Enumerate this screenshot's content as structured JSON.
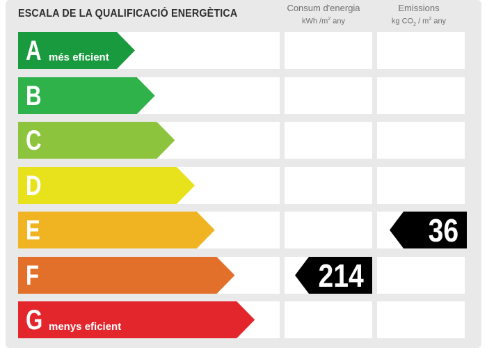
{
  "title": "ESCALA DE LA QUALIFICACIÓ ENERGÈTICA",
  "columns": {
    "consum": {
      "label": "Consum d'energia",
      "unit_pre": "kWh /m",
      "unit_sup": "2",
      "unit_post": " any"
    },
    "emissions": {
      "label": "Emissions",
      "unit_pre": "kg CO",
      "unit_sub": "2",
      "unit_mid": " / m",
      "unit_sup": "2",
      "unit_post": " any"
    }
  },
  "classes": [
    {
      "letter": "A",
      "note": "més eficient",
      "color": "#1a9a3f"
    },
    {
      "letter": "B",
      "note": "",
      "color": "#2fb24a"
    },
    {
      "letter": "C",
      "note": "",
      "color": "#8cc43e"
    },
    {
      "letter": "D",
      "note": "",
      "color": "#e8e21c"
    },
    {
      "letter": "E",
      "note": "",
      "color": "#f0b322"
    },
    {
      "letter": "F",
      "note": "",
      "color": "#e3702a"
    },
    {
      "letter": "G",
      "note": "menys eficient",
      "color": "#e3262c"
    }
  ],
  "rating": {
    "consum": {
      "class": "F",
      "value": "214"
    },
    "emissions": {
      "class": "E",
      "value": "36"
    }
  },
  "marker_color": "#000000"
}
